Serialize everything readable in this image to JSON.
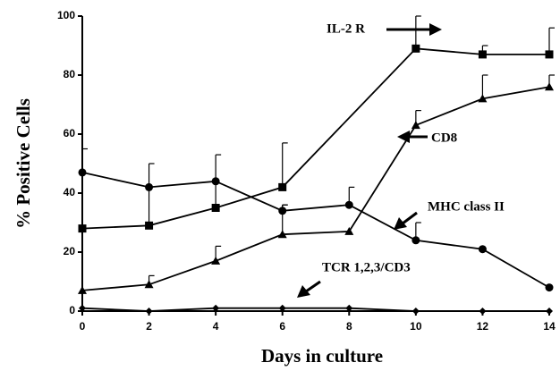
{
  "chart_data": {
    "type": "line",
    "xlabel": "Days in culture",
    "ylabel": "% Positive Cells",
    "xlim": [
      0,
      14
    ],
    "xticks": [
      0,
      2,
      4,
      6,
      8,
      10,
      12,
      14
    ],
    "ylim": [
      0,
      100
    ],
    "yticks": [
      0,
      20,
      40,
      60,
      80,
      100
    ],
    "grid": false,
    "series": [
      {
        "name": "IL-2 R",
        "marker": "square",
        "color": "#000000",
        "x": [
          0,
          2,
          4,
          6,
          10,
          12,
          14
        ],
        "values": [
          28,
          29,
          35,
          42,
          89,
          87,
          87
        ],
        "errors": [
          null,
          21,
          18,
          15,
          11,
          3,
          9
        ]
      },
      {
        "name": "CD8",
        "marker": "triangle",
        "color": "#000000",
        "x": [
          0,
          2,
          4,
          6,
          8,
          10,
          12,
          14
        ],
        "values": [
          7,
          9,
          17,
          26,
          27,
          63,
          72,
          76
        ],
        "errors": [
          null,
          3,
          5,
          10,
          null,
          5,
          8,
          4
        ]
      },
      {
        "name": "MHC class II",
        "marker": "circle",
        "color": "#000000",
        "x": [
          0,
          2,
          4,
          6,
          8,
          10,
          12,
          14
        ],
        "values": [
          47,
          42,
          44,
          34,
          36,
          24,
          21,
          8
        ],
        "errors": [
          8,
          null,
          null,
          2,
          6,
          6,
          null,
          null
        ]
      },
      {
        "name": "TCR 1,2,3/CD3",
        "marker": "diamond",
        "color": "#000000",
        "x": [
          0,
          2,
          4,
          6,
          8,
          10,
          12,
          14
        ],
        "values": [
          1,
          0,
          1,
          1,
          1,
          0,
          0,
          0
        ],
        "errors": [
          null,
          null,
          null,
          null,
          null,
          null,
          null,
          null
        ]
      }
    ]
  }
}
